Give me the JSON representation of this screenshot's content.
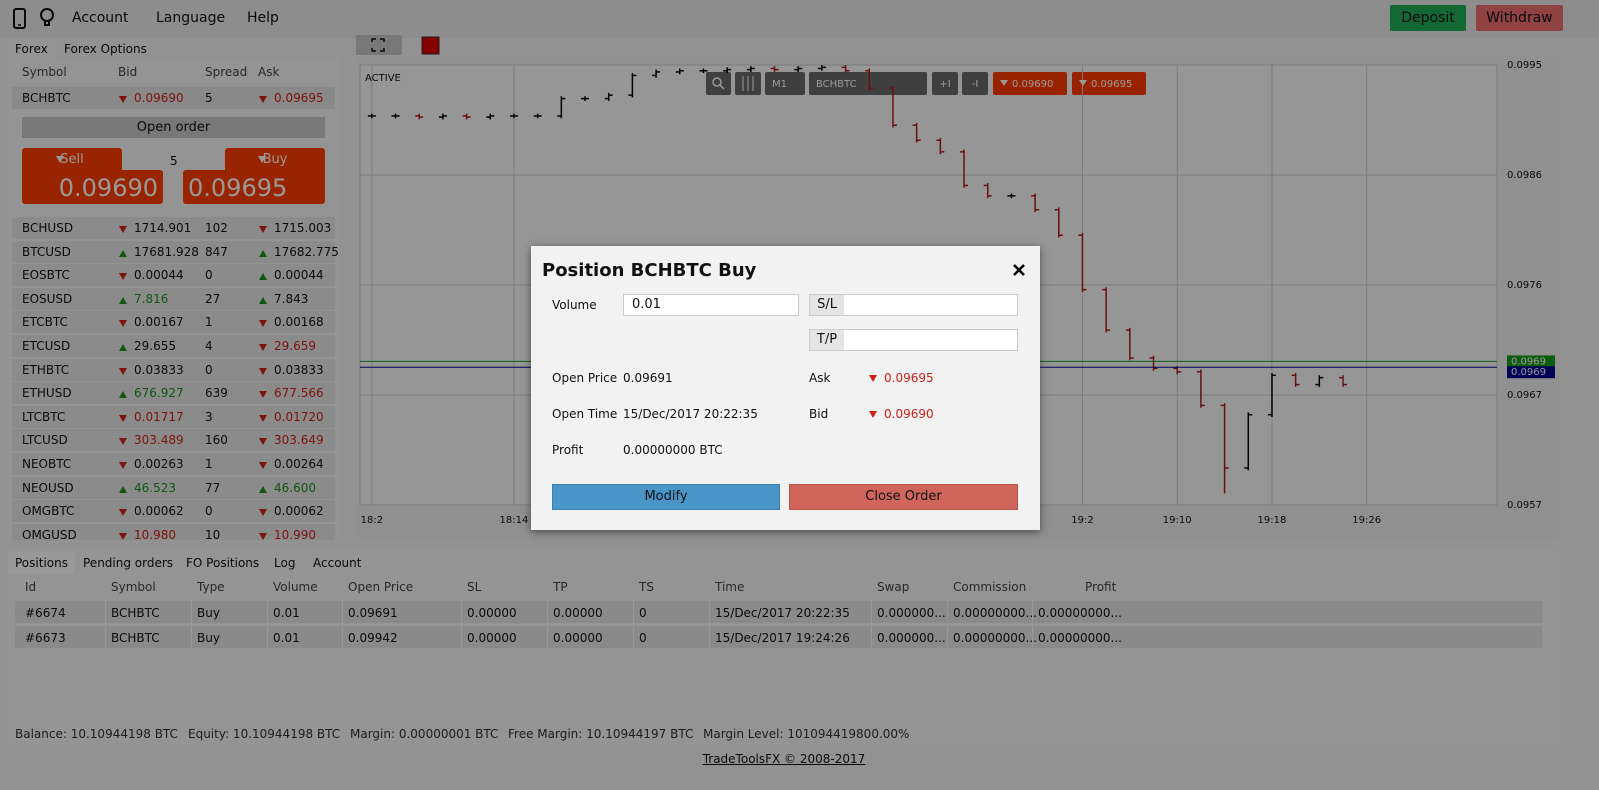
{
  "nav": {
    "menu": [
      "Account",
      "Language",
      "Help"
    ],
    "deposit": "Deposit",
    "withdraw": "Withdraw"
  },
  "market": {
    "tabs": [
      "Forex",
      "Forex Options"
    ],
    "columns": [
      "Symbol",
      "Bid",
      "Spread",
      "Ask"
    ],
    "selected": {
      "symbol": "BCHBTC",
      "bid": "0.09690",
      "bid_trend": "down",
      "bid_color": "#d0201a",
      "spread": "5",
      "ask": "0.09695",
      "ask_trend": "down",
      "ask_color": "#d0201a"
    },
    "open_order": "Open order",
    "sell_label": "Sell",
    "buy_label": "Buy",
    "volume": "5",
    "sell_price": "0.09690",
    "buy_price": "0.09695",
    "rows": [
      {
        "symbol": "BCHUSD",
        "bid": "1714.901",
        "bid_trend": "down",
        "bid_color": "#111111",
        "spread": "102",
        "ask": "1715.003",
        "ask_trend": "down",
        "ask_color": "#111111"
      },
      {
        "symbol": "BTCUSD",
        "bid": "17681.928",
        "bid_trend": "up",
        "bid_color": "#111111",
        "spread": "847",
        "ask": "17682.775",
        "ask_trend": "up",
        "ask_color": "#111111"
      },
      {
        "symbol": "EOSBTC",
        "bid": "0.00044",
        "bid_trend": "down",
        "bid_color": "#111111",
        "spread": "0",
        "ask": "0.00044",
        "ask_trend": "up",
        "ask_color": "#111111"
      },
      {
        "symbol": "EOSUSD",
        "bid": "7.816",
        "bid_trend": "up",
        "bid_color": "#1f8f1f",
        "spread": "27",
        "ask": "7.843",
        "ask_trend": "up",
        "ask_color": "#111111"
      },
      {
        "symbol": "ETCBTC",
        "bid": "0.00167",
        "bid_trend": "down",
        "bid_color": "#111111",
        "spread": "1",
        "ask": "0.00168",
        "ask_trend": "down",
        "ask_color": "#111111"
      },
      {
        "symbol": "ETCUSD",
        "bid": "29.655",
        "bid_trend": "up",
        "bid_color": "#111111",
        "spread": "4",
        "ask": "29.659",
        "ask_trend": "down",
        "ask_color": "#d0201a"
      },
      {
        "symbol": "ETHBTC",
        "bid": "0.03833",
        "bid_trend": "down",
        "bid_color": "#111111",
        "spread": "0",
        "ask": "0.03833",
        "ask_trend": "down",
        "ask_color": "#111111"
      },
      {
        "symbol": "ETHUSD",
        "bid": "676.927",
        "bid_trend": "up",
        "bid_color": "#1f8f1f",
        "spread": "639",
        "ask": "677.566",
        "ask_trend": "down",
        "ask_color": "#d0201a"
      },
      {
        "symbol": "LTCBTC",
        "bid": "0.01717",
        "bid_trend": "down",
        "bid_color": "#d0201a",
        "spread": "3",
        "ask": "0.01720",
        "ask_trend": "down",
        "ask_color": "#d0201a"
      },
      {
        "symbol": "LTCUSD",
        "bid": "303.489",
        "bid_trend": "down",
        "bid_color": "#d0201a",
        "spread": "160",
        "ask": "303.649",
        "ask_trend": "down",
        "ask_color": "#d0201a"
      },
      {
        "symbol": "NEOBTC",
        "bid": "0.00263",
        "bid_trend": "down",
        "bid_color": "#111111",
        "spread": "1",
        "ask": "0.00264",
        "ask_trend": "down",
        "ask_color": "#111111"
      },
      {
        "symbol": "NEOUSD",
        "bid": "46.523",
        "bid_trend": "up",
        "bid_color": "#1f8f1f",
        "spread": "77",
        "ask": "46.600",
        "ask_trend": "up",
        "ask_color": "#1f8f1f"
      },
      {
        "symbol": "OMGBTC",
        "bid": "0.00062",
        "bid_trend": "down",
        "bid_color": "#111111",
        "spread": "0",
        "ask": "0.00062",
        "ask_trend": "down",
        "ask_color": "#111111"
      },
      {
        "symbol": "OMGUSD",
        "bid": "10.980",
        "bid_trend": "down",
        "bid_color": "#d0201a",
        "spread": "10",
        "ask": "10.990",
        "ask_trend": "down",
        "ask_color": "#d0201a"
      }
    ]
  },
  "chart_data": {
    "type": "ohlc",
    "status": "ACTIVE",
    "toolbar": {
      "timeframe": "M1",
      "symbol": "BCHBTC",
      "zoom_in": "+I",
      "zoom_out": "-I",
      "sell_quote": "0.09690",
      "buy_quote": "0.09695"
    },
    "x": [
      1082,
      1084,
      1086,
      1088,
      1090,
      1092,
      1094,
      1096,
      1098,
      1100,
      1102,
      1104,
      1106,
      1108,
      1110,
      1112,
      1114,
      1116,
      1118,
      1120,
      1122,
      1124,
      1126,
      1128,
      1130,
      1132,
      1134,
      1136,
      1138,
      1140,
      1142,
      1144,
      1146,
      1148,
      1150,
      1152,
      1154,
      1156,
      1158,
      1160,
      1162,
      1164
    ],
    "open": [
      0.09906,
      0.09906,
      0.09906,
      0.09905,
      0.09906,
      0.09905,
      0.09906,
      0.09906,
      0.09906,
      0.09921,
      0.09921,
      0.09924,
      0.09941,
      0.09944,
      0.09945,
      0.09945,
      0.09946,
      0.09947,
      0.09946,
      0.09947,
      0.09948,
      0.09945,
      0.0993,
      0.09898,
      0.09885,
      0.09875,
      0.09846,
      0.09837,
      0.09837,
      0.09825,
      0.09803,
      0.09756,
      0.09721,
      0.09697,
      0.09688,
      0.09685,
      0.09656,
      0.09602,
      0.09648,
      0.09682,
      0.09674,
      0.0968
    ],
    "high": [
      0.09908,
      0.09908,
      0.09908,
      0.09908,
      0.09908,
      0.09908,
      0.09908,
      0.09908,
      0.09923,
      0.09923,
      0.09926,
      0.09943,
      0.09946,
      0.09947,
      0.09947,
      0.09948,
      0.09949,
      0.09949,
      0.09949,
      0.0995,
      0.0995,
      0.09947,
      0.09932,
      0.099,
      0.09887,
      0.09877,
      0.09848,
      0.09839,
      0.09839,
      0.09827,
      0.09805,
      0.09758,
      0.09723,
      0.09699,
      0.0969,
      0.09687,
      0.09658,
      0.0965,
      0.09684,
      0.09684,
      0.09682,
      0.09682
    ],
    "low": [
      0.09904,
      0.09904,
      0.09903,
      0.09903,
      0.09903,
      0.09903,
      0.09904,
      0.09904,
      0.09904,
      0.09919,
      0.09919,
      0.09922,
      0.09939,
      0.09942,
      0.09943,
      0.09943,
      0.09944,
      0.09944,
      0.09944,
      0.09945,
      0.09943,
      0.09928,
      0.09896,
      0.09883,
      0.09873,
      0.09844,
      0.09835,
      0.09835,
      0.09823,
      0.09801,
      0.09754,
      0.09719,
      0.09695,
      0.09686,
      0.09683,
      0.09654,
      0.0958,
      0.096,
      0.09646,
      0.09672,
      0.09672,
      0.09672
    ],
    "close": [
      0.09906,
      0.09906,
      0.09905,
      0.09906,
      0.09905,
      0.09906,
      0.09906,
      0.09906,
      0.09921,
      0.09921,
      0.09924,
      0.09941,
      0.09944,
      0.09945,
      0.09945,
      0.09946,
      0.09947,
      0.09946,
      0.09947,
      0.09948,
      0.09945,
      0.0993,
      0.09898,
      0.09885,
      0.09875,
      0.09846,
      0.09837,
      0.09837,
      0.09825,
      0.09803,
      0.09756,
      0.09721,
      0.09697,
      0.09688,
      0.09685,
      0.09656,
      0.09602,
      0.09648,
      0.09682,
      0.09674,
      0.0968,
      0.09674
    ],
    "up_color": "#000000",
    "down_color": "#b01c1c",
    "xlim": [
      1081,
      1177
    ],
    "xticks": [
      {
        "value": 1082,
        "label": "18:2"
      },
      {
        "value": 1094,
        "label": "18:14"
      },
      {
        "value": 1142,
        "label": "19:2"
      },
      {
        "value": 1150,
        "label": "19:10"
      },
      {
        "value": 1158,
        "label": "19:18"
      },
      {
        "value": 1166,
        "label": "19:26"
      }
    ],
    "ylim": [
      0.0957,
      0.0995
    ],
    "yticks": [
      0.0995,
      {
        "value": 0.09855,
        "label": "0.0986"
      },
      0.0976,
      {
        "value": 0.09665,
        "label": "0.0967"
      },
      0.0957
    ],
    "grid": true,
    "levels": [
      {
        "value": 0.09694,
        "label": "0.0969",
        "color": "#1a9a1a"
      },
      {
        "value": 0.09689,
        "label": "0.0969",
        "color": "#000090"
      }
    ]
  },
  "modal": {
    "title": "Position BCHBTC Buy",
    "volume_label": "Volume",
    "volume": "0.01",
    "sl_label": "S/L",
    "tp_label": "T/P",
    "open_price_label": "Open Price",
    "open_price": "0.09691",
    "open_time_label": "Open Time",
    "open_time": "15/Dec/2017 20:22:35",
    "profit_label": "Profit",
    "profit": "0.00000000 BTC",
    "ask_label": "Ask",
    "ask": "0.09695",
    "ask_trend": "down",
    "bid_label": "Bid",
    "bid": "0.09690",
    "bid_trend": "down",
    "modify": "Modify",
    "close_order": "Close Order"
  },
  "positions": {
    "tabs": [
      "Positions",
      "Pending orders",
      "FO Positions",
      "Log",
      "Account"
    ],
    "columns": [
      "Id",
      "Symbol",
      "Type",
      "Volume",
      "Open Price",
      "SL",
      "TP",
      "TS",
      "Time",
      "Swap",
      "Commission",
      "Profit"
    ],
    "rows": [
      [
        "#6674",
        "BCHBTC",
        "Buy",
        "0.01",
        "0.09691",
        "0.00000",
        "0.00000",
        "0",
        "15/Dec/2017 20:22:35",
        "0.000000...",
        "0.00000000...",
        "0.00000000..."
      ],
      [
        "#6673",
        "BCHBTC",
        "Buy",
        "0.01",
        "0.09942",
        "0.00000",
        "0.00000",
        "0",
        "15/Dec/2017 19:24:26",
        "0.000000...",
        "0.00000000...",
        "0.00000000..."
      ]
    ],
    "summary": [
      "Balance: 10.10944198 BTC",
      "Equity: 10.10944198 BTC",
      "Margin: 0.00000001 BTC",
      "Free Margin: 10.10944197 BTC",
      "Margin Level: 101094419800.00%"
    ]
  },
  "footer": "TradeToolsFX © 2008-2017"
}
